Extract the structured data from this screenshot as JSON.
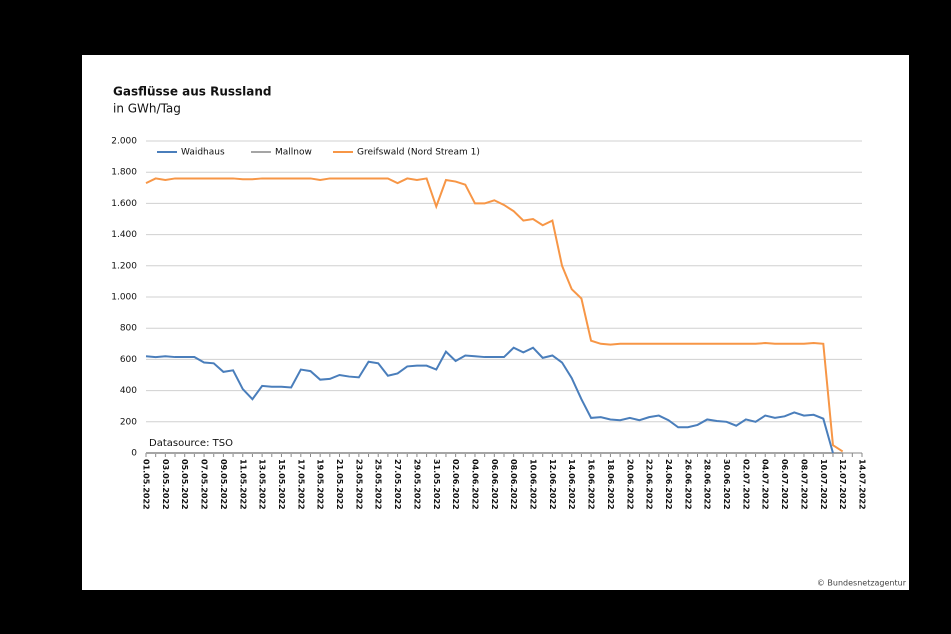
{
  "chart_data": {
    "type": "line",
    "title": "Gasflüsse aus Russland",
    "subtitle": "in GWh/Tag",
    "annotation": "Datasource: TSO",
    "credit": "© Bundesnetzagentur",
    "categories": [
      "01.05.2022",
      null,
      "03.05.2022",
      null,
      "05.05.2022",
      null,
      "07.05.2022",
      null,
      "09.05.2022",
      null,
      "11.05.2022",
      null,
      "13.05.2022",
      null,
      "15.05.2022",
      null,
      "17.05.2022",
      null,
      "19.05.2022",
      null,
      "21.05.2022",
      null,
      "23.05.2022",
      null,
      "25.05.2022",
      null,
      "27.05.2022",
      null,
      "29.05.2022",
      null,
      "31.05.2022",
      null,
      "02.06.2022",
      null,
      "04.06.2022",
      null,
      "06.06.2022",
      null,
      "08.06.2022",
      null,
      "10.06.2022",
      null,
      "12.06.2022",
      null,
      "14.06.2022",
      null,
      "16.06.2022",
      null,
      "18.06.2022",
      null,
      "20.06.2022",
      null,
      "22.06.2022",
      null,
      "24.06.2022",
      null,
      "26.06.2022",
      null,
      "28.06.2022",
      null,
      "30.06.2022",
      null,
      "02.07.2022",
      null,
      "04.07.2022",
      null,
      "06.07.2022",
      null,
      "08.07.2022",
      null,
      "10.07.2022",
      null,
      "12.07.2022",
      null,
      "14.07.2022"
    ],
    "series": [
      {
        "name": "Waidhaus",
        "color": "#4a7ebb",
        "values": [
          620,
          615,
          620,
          615,
          615,
          615,
          580,
          575,
          520,
          530,
          410,
          345,
          430,
          425,
          425,
          420,
          535,
          525,
          470,
          475,
          500,
          490,
          485,
          585,
          575,
          495,
          510,
          555,
          560,
          560,
          535,
          650,
          590,
          625,
          620,
          615,
          615,
          615,
          675,
          645,
          675,
          610,
          625,
          580,
          480,
          345,
          225,
          230,
          215,
          210,
          225,
          210,
          230,
          240,
          210,
          165,
          165,
          180,
          215,
          205,
          200,
          175,
          215,
          200,
          240,
          225,
          235,
          260,
          240,
          245,
          220,
          0,
          null,
          null,
          null
        ]
      },
      {
        "name": "Mallnow",
        "color": "#a5a5a5",
        "values": [
          0,
          0,
          0,
          0,
          0,
          0,
          0,
          0,
          0,
          0,
          0,
          0,
          0,
          0,
          0,
          0,
          0,
          0,
          0,
          0,
          0,
          0,
          0,
          0,
          0,
          0,
          0,
          0,
          0,
          0,
          0,
          0,
          0,
          0,
          0,
          0,
          0,
          0,
          0,
          0,
          0,
          0,
          0,
          0,
          0,
          0,
          0,
          0,
          0,
          0,
          0,
          0,
          0,
          0,
          0,
          0,
          0,
          0,
          0,
          0,
          0,
          0,
          0,
          0,
          0,
          0,
          0,
          0,
          0,
          0,
          0,
          0,
          0,
          null,
          null
        ]
      },
      {
        "name": "Greifswald (Nord Stream 1)",
        "color": "#f79646",
        "values": [
          1730,
          1760,
          1750,
          1760,
          1760,
          1760,
          1760,
          1760,
          1760,
          1760,
          1755,
          1755,
          1760,
          1760,
          1760,
          1760,
          1760,
          1760,
          1750,
          1760,
          1760,
          1760,
          1760,
          1760,
          1760,
          1760,
          1730,
          1760,
          1750,
          1760,
          1580,
          1750,
          1740,
          1720,
          1600,
          1600,
          1620,
          1590,
          1550,
          1490,
          1500,
          1460,
          1490,
          1200,
          1050,
          990,
          720,
          700,
          695,
          700,
          700,
          700,
          700,
          700,
          700,
          700,
          700,
          700,
          700,
          700,
          700,
          700,
          700,
          700,
          705,
          700,
          700,
          700,
          700,
          705,
          700,
          50,
          10,
          null,
          null
        ]
      }
    ],
    "ylim": [
      0,
      2000
    ],
    "yticks": [
      0,
      200,
      400,
      600,
      800,
      {
        "value": 1000,
        "label": "1.000"
      },
      {
        "value": 1200,
        "label": "1.200"
      },
      {
        "value": 1400,
        "label": "1.400"
      },
      {
        "value": 1600,
        "label": "1.600"
      },
      {
        "value": 1800,
        "label": "1.800"
      },
      {
        "value": 2000,
        "label": "2.000"
      }
    ],
    "grid": true,
    "legend": "top"
  }
}
